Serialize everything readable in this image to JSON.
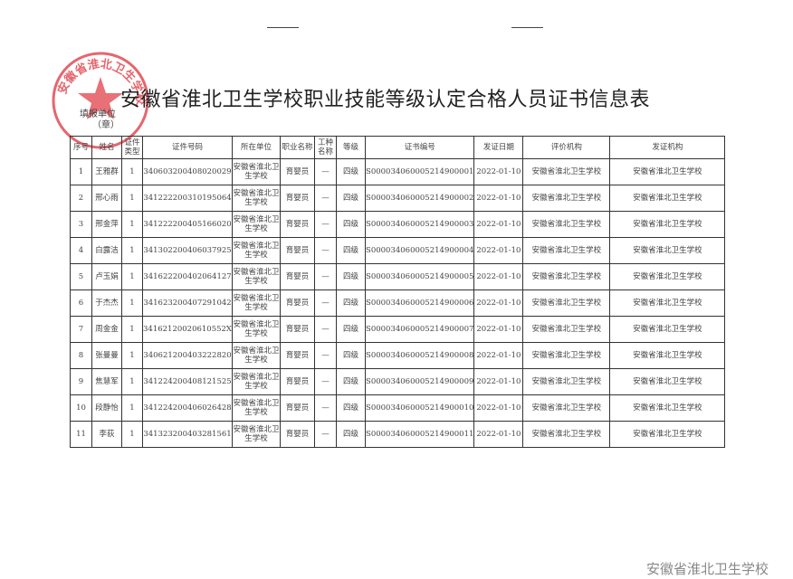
{
  "title": "安徽省淮北卫生学校职业技能等级认定合格人员证书信息表",
  "unit_label": "填报单位",
  "seal_label": "（章）",
  "stamp_text": "安徽省淮北卫生学校",
  "watermark": "安徽省淮北卫生学校",
  "colors": {
    "stamp": "#e0404a"
  },
  "headers": [
    "序号",
    "姓名",
    "证件类型",
    "证件号码",
    "所在单位",
    "职业名称",
    "工种名称",
    "等级",
    "证书编号",
    "发证日期",
    "评价机构",
    "发证机构"
  ],
  "rows": [
    [
      "1",
      "王雅群",
      "1",
      "340603200408020029",
      "安徽省淮北卫生学校",
      "育婴员",
      "—",
      "四级",
      "S000034060005214900001",
      "2022-01-10",
      "安徽省淮北卫生学校",
      "安徽省淮北卫生学校"
    ],
    [
      "2",
      "邢心雨",
      "1",
      "341222200310195064",
      "安徽省淮北卫生学校",
      "育婴员",
      "—",
      "四级",
      "S000034060005214900002",
      "2022-01-10",
      "安徽省淮北卫生学校",
      "安徽省淮北卫生学校"
    ],
    [
      "3",
      "邢金萍",
      "1",
      "341222200405166020",
      "安徽省淮北卫生学校",
      "育婴员",
      "—",
      "四级",
      "S000034060005214900003",
      "2022-01-10",
      "安徽省淮北卫生学校",
      "安徽省淮北卫生学校"
    ],
    [
      "4",
      "白露洁",
      "1",
      "341302200406037925",
      "安徽省淮北卫生学校",
      "育婴员",
      "—",
      "四级",
      "S000034060005214900004",
      "2022-01-10",
      "安徽省淮北卫生学校",
      "安徽省淮北卫生学校"
    ],
    [
      "5",
      "卢玉娟",
      "1",
      "341622200402064127",
      "安徽省淮北卫生学校",
      "育婴员",
      "—",
      "四级",
      "S000034060005214900005",
      "2022-01-10",
      "安徽省淮北卫生学校",
      "安徽省淮北卫生学校"
    ],
    [
      "6",
      "于杰杰",
      "1",
      "341623200407291042",
      "安徽省淮北卫生学校",
      "育婴员",
      "—",
      "四级",
      "S000034060005214900006",
      "2022-01-10",
      "安徽省淮北卫生学校",
      "安徽省淮北卫生学校"
    ],
    [
      "7",
      "周金金",
      "1",
      "34162120020610552X",
      "安徽省淮北卫生学校",
      "育婴员",
      "—",
      "四级",
      "S000034060005214900007",
      "2022-01-10",
      "安徽省淮北卫生学校",
      "安徽省淮北卫生学校"
    ],
    [
      "8",
      "张曼曼",
      "1",
      "340621200403222820",
      "安徽省淮北卫生学校",
      "育婴员",
      "—",
      "四级",
      "S000034060005214900008",
      "2022-01-10",
      "安徽省淮北卫生学校",
      "安徽省淮北卫生学校"
    ],
    [
      "9",
      "焦慧军",
      "1",
      "341224200408121525",
      "安徽省淮北卫生学校",
      "育婴员",
      "—",
      "四级",
      "S000034060005214900009",
      "2022-01-10",
      "安徽省淮北卫生学校",
      "安徽省淮北卫生学校"
    ],
    [
      "10",
      "段静怡",
      "1",
      "341224200406026428",
      "安徽省淮北卫生学校",
      "育婴员",
      "—",
      "四级",
      "S000034060005214900010",
      "2022-01-10",
      "安徽省淮北卫生学校",
      "安徽省淮北卫生学校"
    ],
    [
      "11",
      "李荻",
      "1",
      "341323200403281561",
      "安徽省淮北卫生学校",
      "育婴员",
      "—",
      "四级",
      "S000034060005214900011",
      "2022-01-10",
      "安徽省淮北卫生学校",
      "安徽省淮北卫生学校"
    ]
  ]
}
